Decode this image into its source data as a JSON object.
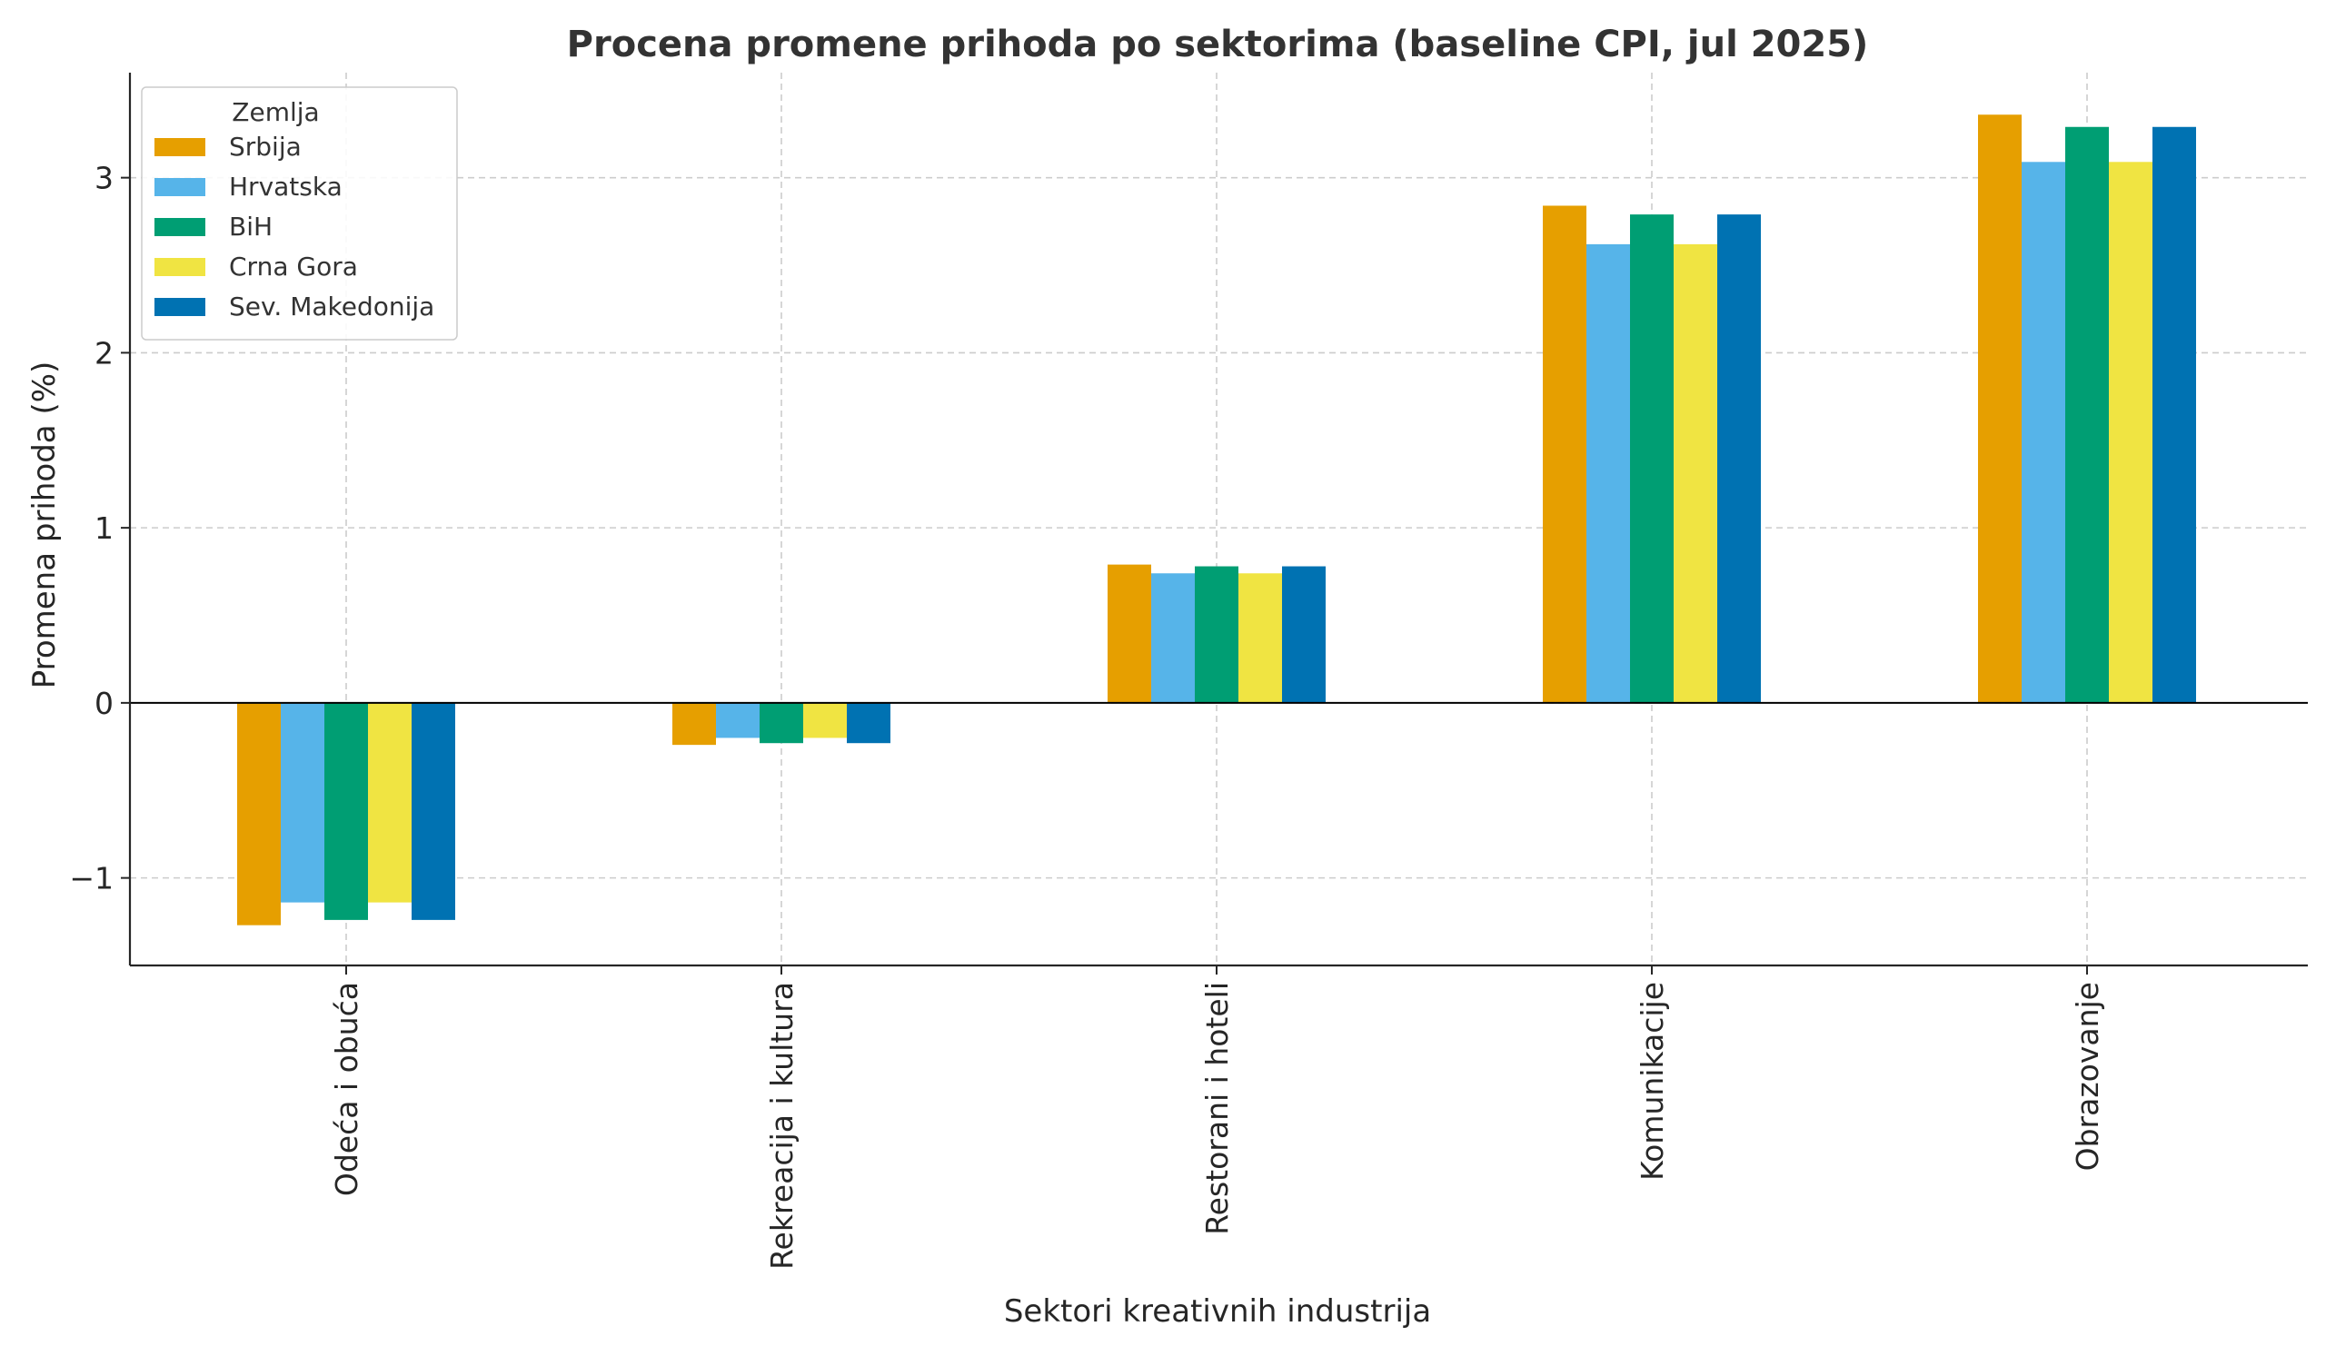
{
  "chart_data": {
    "type": "bar",
    "title": "Procena promene prihoda po sektorima (baseline CPI, jul 2025)",
    "xlabel": "Sektori kreativnih industrija",
    "ylabel": "Promena prihoda (%)",
    "ylim": [
      -1.5,
      3.6
    ],
    "yticks": [
      -1,
      0,
      1,
      2,
      3
    ],
    "ytick_labels": [
      "−1",
      "0",
      "1",
      "2",
      "3"
    ],
    "grid": true,
    "legend": {
      "title": "Zemlja",
      "placement": "top-left"
    },
    "categories": [
      "Odeća i obuća",
      "Rekreacija i kultura",
      "Restorani i hoteli",
      "Komunikacije",
      "Obrazovanje"
    ],
    "series": [
      {
        "name": "Srbija",
        "color": "#E69F00",
        "values": [
          -1.27,
          -0.24,
          0.79,
          2.84,
          3.36
        ]
      },
      {
        "name": "Hrvatska",
        "color": "#56B4E9",
        "values": [
          -1.14,
          -0.2,
          0.74,
          2.62,
          3.09
        ]
      },
      {
        "name": "BiH",
        "color": "#009E73",
        "values": [
          -1.24,
          -0.23,
          0.78,
          2.79,
          3.29
        ]
      },
      {
        "name": "Crna Gora",
        "color": "#F0E442",
        "values": [
          -1.14,
          -0.2,
          0.74,
          2.62,
          3.09
        ]
      },
      {
        "name": "Sev. Makedonija",
        "color": "#0072B2",
        "values": [
          -1.24,
          -0.23,
          0.78,
          2.79,
          3.29
        ]
      }
    ]
  }
}
